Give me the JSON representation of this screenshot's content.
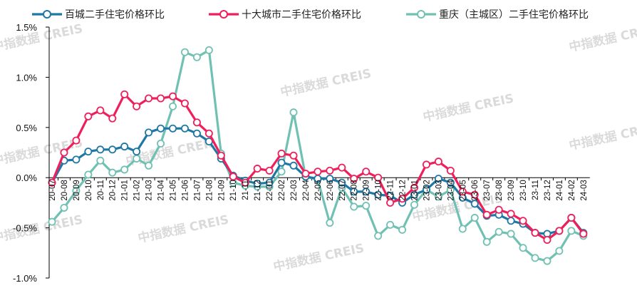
{
  "colors": {
    "blue": "#1f77a4",
    "red": "#ef1f5b",
    "teal": "#70c1b3",
    "axis": "#000000"
  },
  "watermark": {
    "text": "中指数据 CREIS"
  },
  "chart_data": {
    "type": "line",
    "ylim": [
      -1.0,
      1.5
    ],
    "y_ticks": [
      "1.5%",
      "1.0%",
      "0.5%",
      "0.0%",
      "-0.5%",
      "-1.0%"
    ],
    "y_tick_values": [
      1.5,
      1.0,
      0.5,
      0.0,
      -0.5,
      -1.0
    ],
    "categories": [
      "20-07",
      "20-08",
      "20-09",
      "20-10",
      "20-11",
      "20-12",
      "21-01",
      "21-02",
      "21-03",
      "21-04",
      "21-05",
      "21-06",
      "21-07",
      "21-08",
      "21-09",
      "21-10",
      "21-11",
      "21-12",
      "22-01",
      "22-02",
      "22-03",
      "22-04",
      "22-05",
      "22-06",
      "22-07",
      "22-08",
      "22-09",
      "22-10",
      "22-11",
      "22-12",
      "23-01",
      "23-02",
      "23-03",
      "23-04",
      "23-05",
      "23-06",
      "23-07",
      "23-08",
      "23-09",
      "23-10",
      "23-11",
      "23-12",
      "24-01",
      "24-02",
      "24-03"
    ],
    "x_tick_labels": [
      "20-07",
      "20-08",
      "20-09",
      "20-10",
      "20-11",
      "20-12",
      "21-01",
      "21-02",
      "21-03",
      "21-04",
      "21-05",
      "21-06",
      "21-07",
      "21-08",
      "21-09",
      "21-10",
      "21-11",
      "21-12",
      "22-01",
      "22-02",
      "22-03",
      "22-04",
      "22-05",
      "22-06",
      "22-07",
      "22-08",
      "22-09",
      "22-10",
      "22-11",
      "22-12",
      "23-01",
      "23-02",
      "23-03",
      "23-04",
      "23-05",
      "23-06",
      "23-07",
      "23-08",
      "23-09",
      "23-10",
      "23-11",
      "23-12",
      "24-01",
      "24-02",
      "24-03"
    ],
    "series": [
      {
        "name": "百城二手住宅价格环比",
        "color": "#1f77a4",
        "values": [
          -0.05,
          0.17,
          0.18,
          0.26,
          0.28,
          0.28,
          0.31,
          0.26,
          0.45,
          0.49,
          0.49,
          0.49,
          0.44,
          0.36,
          0.19,
          0.02,
          -0.03,
          -0.06,
          -0.05,
          0.15,
          0.12,
          0.01,
          -0.01,
          -0.01,
          -0.05,
          -0.14,
          -0.14,
          -0.17,
          -0.18,
          -0.25,
          -0.17,
          -0.12,
          -0.01,
          -0.05,
          -0.2,
          -0.26,
          -0.38,
          -0.37,
          -0.43,
          -0.46,
          -0.55,
          -0.56,
          -0.53,
          -0.4,
          -0.55
        ]
      },
      {
        "name": "十大城市二手住宅价格环比",
        "color": "#ef1f5b",
        "values": [
          -0.05,
          0.25,
          0.37,
          0.61,
          0.67,
          0.59,
          0.83,
          0.71,
          0.79,
          0.79,
          0.81,
          0.74,
          0.55,
          0.44,
          0.22,
          0.01,
          -0.05,
          0.09,
          0.07,
          0.24,
          0.22,
          0.04,
          0.06,
          0.07,
          0.1,
          -0.01,
          0.06,
          0.0,
          -0.25,
          -0.21,
          -0.1,
          0.13,
          0.16,
          0.07,
          -0.14,
          -0.17,
          -0.37,
          -0.32,
          -0.36,
          -0.43,
          -0.55,
          -0.62,
          -0.53,
          -0.4,
          -0.56
        ]
      },
      {
        "name": "重庆（主城区）二手住宅价格环比",
        "color": "#70c1b3",
        "values": [
          -0.44,
          -0.3,
          -0.13,
          0.03,
          0.17,
          0.05,
          0.08,
          0.19,
          0.12,
          0.34,
          0.71,
          1.25,
          1.2,
          1.27,
          0.24,
          -0.05,
          -0.08,
          -0.09,
          -0.09,
          0.06,
          0.65,
          0.01,
          -0.02,
          -0.45,
          -0.1,
          -0.29,
          -0.28,
          -0.58,
          -0.47,
          -0.52,
          -0.27,
          -0.12,
          -0.19,
          -0.12,
          -0.51,
          -0.4,
          -0.64,
          -0.54,
          -0.56,
          -0.7,
          -0.8,
          -0.83,
          -0.73,
          -0.53,
          -0.58
        ]
      }
    ]
  }
}
